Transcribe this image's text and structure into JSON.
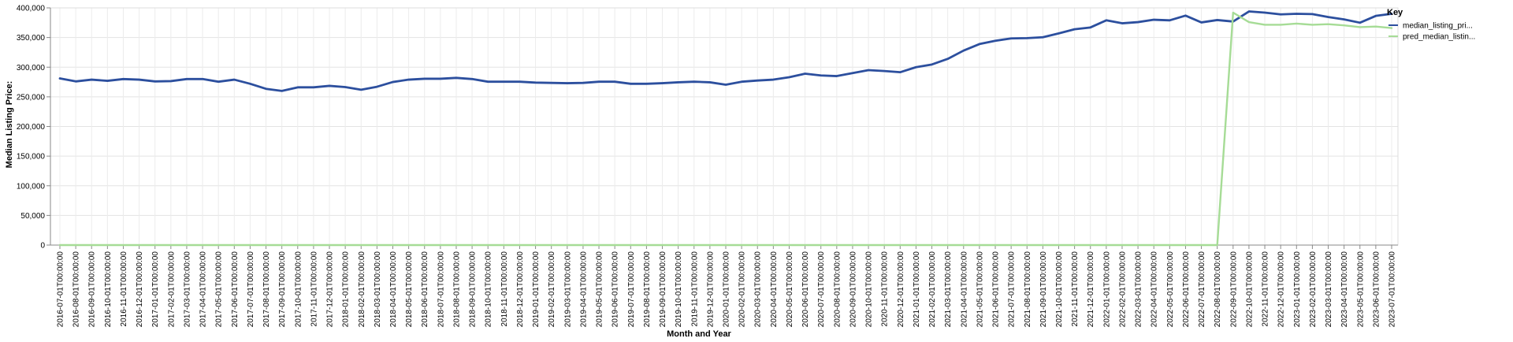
{
  "chart_data": {
    "type": "line",
    "x_axis_title": "Month and Year",
    "y_axis_title": "Median Listing Price:",
    "ylim": [
      0,
      400000
    ],
    "y_ticks": [
      "0",
      "50,000",
      "100,000",
      "150,000",
      "200,000",
      "250,000",
      "300,000",
      "350,000",
      "400,000"
    ],
    "y_tick_values": [
      0,
      50000,
      100000,
      150000,
      200000,
      250000,
      300000,
      350000,
      400000
    ],
    "grid": true,
    "legend": {
      "title": "Key",
      "position": "right"
    },
    "x": [
      "2016-07-01T00:00:00",
      "2016-08-01T00:00:00",
      "2016-09-01T00:00:00",
      "2016-10-01T00:00:00",
      "2016-11-01T00:00:00",
      "2016-12-01T00:00:00",
      "2017-01-01T00:00:00",
      "2017-02-01T00:00:00",
      "2017-03-01T00:00:00",
      "2017-04-01T00:00:00",
      "2017-05-01T00:00:00",
      "2017-06-01T00:00:00",
      "2017-07-01T00:00:00",
      "2017-08-01T00:00:00",
      "2017-09-01T00:00:00",
      "2017-10-01T00:00:00",
      "2017-11-01T00:00:00",
      "2017-12-01T00:00:00",
      "2018-01-01T00:00:00",
      "2018-02-01T00:00:00",
      "2018-03-01T00:00:00",
      "2018-04-01T00:00:00",
      "2018-05-01T00:00:00",
      "2018-06-01T00:00:00",
      "2018-07-01T00:00:00",
      "2018-08-01T00:00:00",
      "2018-09-01T00:00:00",
      "2018-10-01T00:00:00",
      "2018-11-01T00:00:00",
      "2018-12-01T00:00:00",
      "2019-01-01T00:00:00",
      "2019-02-01T00:00:00",
      "2019-03-01T00:00:00",
      "2019-04-01T00:00:00",
      "2019-05-01T00:00:00",
      "2019-06-01T00:00:00",
      "2019-07-01T00:00:00",
      "2019-08-01T00:00:00",
      "2019-09-01T00:00:00",
      "2019-10-01T00:00:00",
      "2019-11-01T00:00:00",
      "2019-12-01T00:00:00",
      "2020-01-01T00:00:00",
      "2020-02-01T00:00:00",
      "2020-03-01T00:00:00",
      "2020-04-01T00:00:00",
      "2020-05-01T00:00:00",
      "2020-06-01T00:00:00",
      "2020-07-01T00:00:00",
      "2020-08-01T00:00:00",
      "2020-09-01T00:00:00",
      "2020-10-01T00:00:00",
      "2020-11-01T00:00:00",
      "2020-12-01T00:00:00",
      "2021-01-01T00:00:00",
      "2021-02-01T00:00:00",
      "2021-03-01T00:00:00",
      "2021-04-01T00:00:00",
      "2021-05-01T00:00:00",
      "2021-06-01T00:00:00",
      "2021-07-01T00:00:00",
      "2021-08-01T00:00:00",
      "2021-09-01T00:00:00",
      "2021-10-01T00:00:00",
      "2021-11-01T00:00:00",
      "2021-12-01T00:00:00",
      "2022-01-01T00:00:00",
      "2022-02-01T00:00:00",
      "2022-03-01T00:00:00",
      "2022-04-01T00:00:00",
      "2022-05-01T00:00:00",
      "2022-06-01T00:00:00",
      "2022-07-01T00:00:00",
      "2022-08-01T00:00:00",
      "2022-09-01T00:00:00",
      "2022-10-01T00:00:00",
      "2022-11-01T00:00:00",
      "2022-12-01T00:00:00",
      "2023-01-01T00:00:00",
      "2023-02-01T00:00:00",
      "2023-03-01T00:00:00",
      "2023-04-01T00:00:00",
      "2023-05-01T00:00:00",
      "2023-06-01T00:00:00",
      "2023-07-01T00:00:00"
    ],
    "series": [
      {
        "name": "median_listing_pri...",
        "color": "#2c4f9e",
        "values": [
          281000,
          276000,
          279000,
          277000,
          280000,
          279000,
          276000,
          276500,
          280000,
          280000,
          275500,
          279000,
          272000,
          263500,
          260000,
          266000,
          266000,
          268500,
          266500,
          262000,
          267000,
          275000,
          279000,
          280500,
          280500,
          282000,
          280000,
          275500,
          275500,
          275500,
          274000,
          273500,
          273000,
          273500,
          275500,
          275500,
          272000,
          272000,
          273000,
          274500,
          275500,
          274500,
          270500,
          275500,
          277500,
          279000,
          283000,
          289000,
          286000,
          285000,
          290000,
          295000,
          293500,
          291500,
          300000,
          304500,
          314000,
          328000,
          339000,
          344500,
          348500,
          349000,
          350500,
          357000,
          364000,
          367000,
          379000,
          374000,
          376000,
          380000,
          379000,
          387000,
          375500,
          379500,
          377000,
          394000,
          392000,
          389000,
          390000,
          389500,
          384500,
          380500,
          375000,
          386500,
          390000
        ]
      },
      {
        "name": "pred_median_listin...",
        "color": "#a6dc96",
        "values": [
          0,
          0,
          0,
          0,
          0,
          0,
          0,
          0,
          0,
          0,
          0,
          0,
          0,
          0,
          0,
          0,
          0,
          0,
          0,
          0,
          0,
          0,
          0,
          0,
          0,
          0,
          0,
          0,
          0,
          0,
          0,
          0,
          0,
          0,
          0,
          0,
          0,
          0,
          0,
          0,
          0,
          0,
          0,
          0,
          0,
          0,
          0,
          0,
          0,
          0,
          0,
          0,
          0,
          0,
          0,
          0,
          0,
          0,
          0,
          0,
          0,
          0,
          0,
          0,
          0,
          0,
          0,
          0,
          0,
          0,
          0,
          0,
          0,
          0,
          392000,
          376000,
          371500,
          371500,
          373500,
          371500,
          372500,
          370500,
          367500,
          368500,
          366000
        ]
      }
    ]
  }
}
